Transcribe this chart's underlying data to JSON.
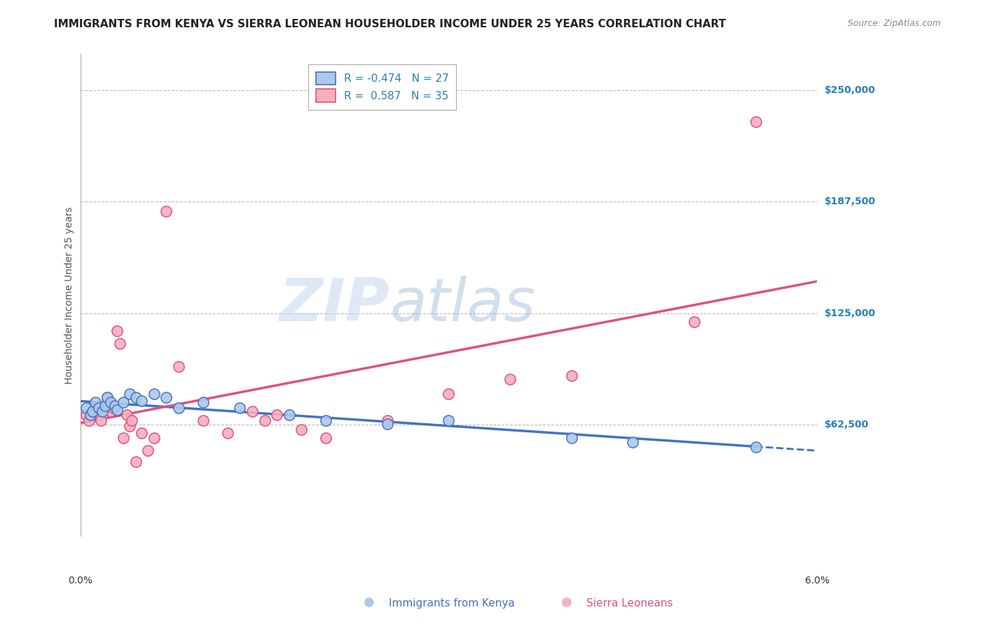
{
  "title": "IMMIGRANTS FROM KENYA VS SIERRA LEONEAN HOUSEHOLDER INCOME UNDER 25 YEARS CORRELATION CHART",
  "source": "Source: ZipAtlas.com",
  "ylabel": "Householder Income Under 25 years",
  "xmin": 0.0,
  "xmax": 6.0,
  "ymin": 0,
  "ymax": 270000,
  "yticks": [
    62500,
    125000,
    187500,
    250000
  ],
  "ytick_labels": [
    "$62,500",
    "$125,000",
    "$187,500",
    "$250,000"
  ],
  "ytick_color": "#2980b9",
  "grid_color": "#bbbbbb",
  "background_color": "#ffffff",
  "watermark_zip": "ZIP",
  "watermark_atlas": "atlas",
  "legend_R_kenya": "-0.474",
  "legend_N_kenya": "27",
  "legend_R_sierra": " 0.587",
  "legend_N_sierra": "35",
  "kenya_color": "#adc8e8",
  "kenya_edge_color": "#4472c4",
  "kenya_line_color": "#4472c4",
  "sierra_color": "#f4b0be",
  "sierra_edge_color": "#e05080",
  "sierra_line_color": "#e05080",
  "kenya_scatter_x": [
    0.05,
    0.08,
    0.1,
    0.12,
    0.15,
    0.18,
    0.2,
    0.22,
    0.25,
    0.28,
    0.3,
    0.35,
    0.4,
    0.45,
    0.5,
    0.6,
    0.7,
    0.8,
    1.0,
    1.3,
    1.7,
    2.0,
    2.5,
    3.0,
    4.0,
    4.5,
    5.5
  ],
  "kenya_scatter_y": [
    72000,
    68000,
    70000,
    75000,
    72000,
    70000,
    73000,
    78000,
    75000,
    73000,
    71000,
    75000,
    80000,
    78000,
    76000,
    80000,
    78000,
    72000,
    75000,
    72000,
    68000,
    65000,
    63000,
    65000,
    55000,
    53000,
    50000
  ],
  "sierra_scatter_x": [
    0.05,
    0.07,
    0.1,
    0.12,
    0.15,
    0.17,
    0.2,
    0.22,
    0.25,
    0.27,
    0.3,
    0.32,
    0.35,
    0.38,
    0.4,
    0.42,
    0.45,
    0.5,
    0.55,
    0.6,
    0.7,
    0.8,
    1.0,
    1.2,
    1.4,
    1.5,
    1.6,
    1.8,
    2.0,
    2.5,
    3.0,
    3.5,
    4.0,
    5.0,
    5.5
  ],
  "sierra_scatter_y": [
    68000,
    65000,
    70000,
    72000,
    68000,
    65000,
    72000,
    78000,
    70000,
    72000,
    115000,
    108000,
    55000,
    68000,
    62000,
    65000,
    42000,
    58000,
    48000,
    55000,
    182000,
    95000,
    65000,
    58000,
    70000,
    65000,
    68000,
    60000,
    55000,
    65000,
    80000,
    88000,
    90000,
    120000,
    232000
  ],
  "title_fontsize": 11,
  "source_fontsize": 9,
  "ylabel_fontsize": 10,
  "tick_fontsize": 10,
  "legend_fontsize": 11
}
